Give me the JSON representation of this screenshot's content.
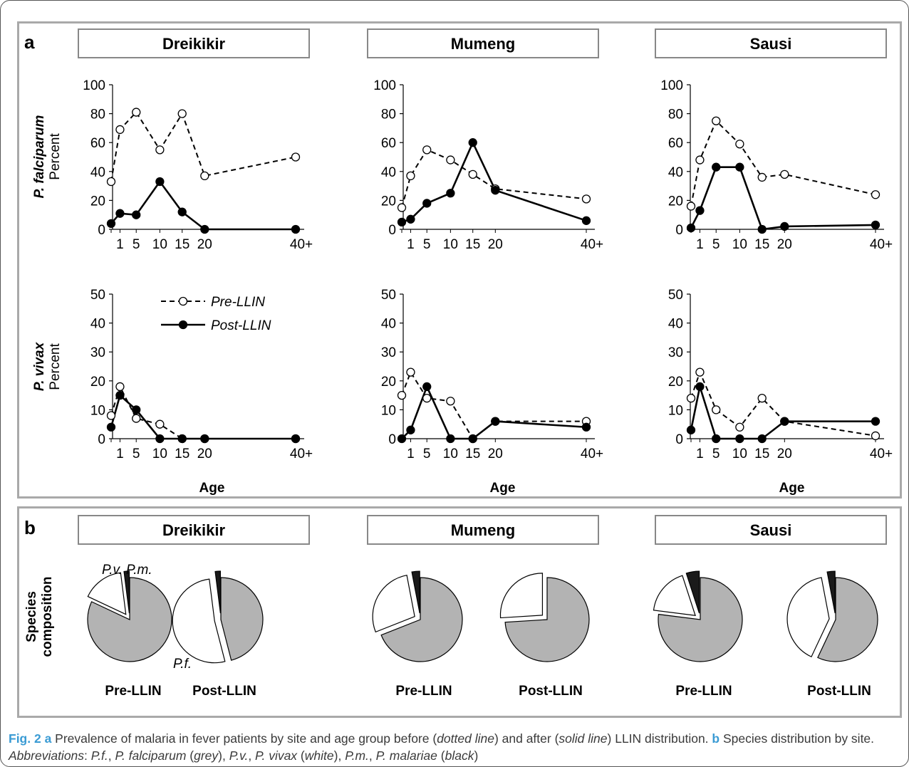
{
  "panel_a_label": "a",
  "panel_b_label": "b",
  "sites": [
    "Dreikikir",
    "Mumeng",
    "Sausi"
  ],
  "row_labels": {
    "pf_species": "P. falciparum",
    "pv_species": "P. vivax",
    "unit": "Percent"
  },
  "axis_xlabel": "Age",
  "legend": {
    "pre": "Pre-LLIN",
    "post": "Post-LLIN"
  },
  "pie_row_label": [
    "Species",
    "composition"
  ],
  "pie_labels": {
    "pv": "P.v.",
    "pm": "P.m.",
    "pf": "P.f."
  },
  "pie_period_labels": [
    "Pre-LLIN",
    "Post-LLIN"
  ],
  "caption": {
    "fig": "Fig. 2",
    "a": "a",
    "text1": " Prevalence of malaria in fever patients by site and age group before (",
    "dotted": "dotted line",
    "text2": ") and after (",
    "solid": "solid line",
    "text3": ") LLIN distribution. ",
    "b": "b",
    "text4": " Species distribution by site. ",
    "abbrev": "Abbreviations",
    "text5": ": ",
    "pf": "P.f.",
    "c1": ", ",
    "pf_full": "P. falciparum",
    "c2": " (",
    "grey": "grey",
    "c3": "), ",
    "pv": "P.v.",
    "c4": ", ",
    "pv_full": "P. vivax",
    "c5": " (",
    "white": "white",
    "c6": "), ",
    "pm": "P.m.",
    "c7": ", ",
    "pm_full": "P. malariae",
    "c8": " (",
    "black": "black",
    "c9": ")"
  },
  "chart_data": [
    {
      "type": "line",
      "site": "Dreikikir",
      "row": "P. falciparum",
      "x_ticks": [
        "1",
        "5",
        "10",
        "15",
        "20",
        "40+"
      ],
      "ylim": [
        0,
        100
      ],
      "y_ticks": [
        0,
        20,
        40,
        60,
        80,
        100
      ],
      "x": [
        0,
        1,
        5,
        10,
        15,
        20,
        40
      ],
      "series": [
        {
          "name": "Pre-LLIN",
          "values": [
            33,
            69,
            81,
            55,
            80,
            37,
            50
          ]
        },
        {
          "name": "Post-LLIN",
          "values": [
            4,
            11,
            10,
            33,
            12,
            0,
            0
          ]
        }
      ]
    },
    {
      "type": "line",
      "site": "Mumeng",
      "row": "P. falciparum",
      "x_ticks": [
        "1",
        "5",
        "10",
        "15",
        "20",
        "40+"
      ],
      "ylim": [
        0,
        100
      ],
      "y_ticks": [
        0,
        20,
        40,
        60,
        80,
        100
      ],
      "x": [
        0,
        1,
        5,
        10,
        15,
        20,
        40
      ],
      "series": [
        {
          "name": "Pre-LLIN",
          "values": [
            15,
            37,
            55,
            48,
            38,
            28,
            21
          ]
        },
        {
          "name": "Post-LLIN",
          "values": [
            5,
            7,
            18,
            25,
            60,
            27,
            6
          ]
        }
      ]
    },
    {
      "type": "line",
      "site": "Sausi",
      "row": "P. falciparum",
      "x_ticks": [
        "1",
        "5",
        "10",
        "15",
        "20",
        "40+"
      ],
      "ylim": [
        0,
        100
      ],
      "y_ticks": [
        0,
        20,
        40,
        60,
        80,
        100
      ],
      "x": [
        0,
        1,
        5,
        10,
        15,
        20,
        40
      ],
      "series": [
        {
          "name": "Pre-LLIN",
          "values": [
            16,
            48,
            75,
            59,
            36,
            38,
            24
          ]
        },
        {
          "name": "Post-LLIN",
          "values": [
            1,
            13,
            43,
            43,
            0,
            2,
            3
          ]
        }
      ]
    },
    {
      "type": "line",
      "site": "Dreikikir",
      "row": "P. vivax",
      "x_ticks": [
        "1",
        "5",
        "10",
        "15",
        "20",
        "40+"
      ],
      "ylim": [
        0,
        50
      ],
      "y_ticks": [
        0,
        10,
        20,
        30,
        40,
        50
      ],
      "x": [
        0,
        1,
        5,
        10,
        15,
        20,
        40
      ],
      "series": [
        {
          "name": "Pre-LLIN",
          "values": [
            8,
            18,
            7,
            5,
            0,
            0,
            0
          ]
        },
        {
          "name": "Post-LLIN",
          "values": [
            4,
            15,
            10,
            0,
            0,
            0,
            0
          ]
        }
      ]
    },
    {
      "type": "line",
      "site": "Mumeng",
      "row": "P. vivax",
      "x_ticks": [
        "1",
        "5",
        "10",
        "15",
        "20",
        "40+"
      ],
      "ylim": [
        0,
        50
      ],
      "y_ticks": [
        0,
        10,
        20,
        30,
        40,
        50
      ],
      "x": [
        0,
        1,
        5,
        10,
        15,
        20,
        40
      ],
      "series": [
        {
          "name": "Pre-LLIN",
          "values": [
            15,
            23,
            14,
            13,
            0,
            6,
            6
          ]
        },
        {
          "name": "Post-LLIN",
          "values": [
            0,
            3,
            18,
            0,
            0,
            6,
            4
          ]
        }
      ]
    },
    {
      "type": "line",
      "site": "Sausi",
      "row": "P. vivax",
      "x_ticks": [
        "1",
        "5",
        "10",
        "15",
        "20",
        "40+"
      ],
      "ylim": [
        0,
        50
      ],
      "y_ticks": [
        0,
        10,
        20,
        30,
        40,
        50
      ],
      "x": [
        0,
        1,
        5,
        10,
        15,
        20,
        40
      ],
      "series": [
        {
          "name": "Pre-LLIN",
          "values": [
            14,
            23,
            10,
            4,
            14,
            6,
            1
          ]
        },
        {
          "name": "Post-LLIN",
          "values": [
            3,
            18,
            0,
            0,
            0,
            6,
            6
          ]
        }
      ]
    },
    {
      "type": "pie",
      "site": "Dreikikir",
      "period": "Pre-LLIN",
      "categories": [
        "P.f.",
        "P.v.",
        "P.m."
      ],
      "values": [
        82,
        16,
        2
      ],
      "colors": [
        "#b3b3b3",
        "#ffffff",
        "#1a1a1a"
      ]
    },
    {
      "type": "pie",
      "site": "Dreikikir",
      "period": "Post-LLIN",
      "categories": [
        "P.f.",
        "P.v.",
        "P.m."
      ],
      "values": [
        46,
        52,
        2
      ],
      "colors": [
        "#b3b3b3",
        "#ffffff",
        "#1a1a1a"
      ]
    },
    {
      "type": "pie",
      "site": "Mumeng",
      "period": "Pre-LLIN",
      "categories": [
        "P.f.",
        "P.v.",
        "P.m."
      ],
      "values": [
        69,
        28,
        3
      ],
      "colors": [
        "#b3b3b3",
        "#ffffff",
        "#1a1a1a"
      ]
    },
    {
      "type": "pie",
      "site": "Mumeng",
      "period": "Post-LLIN",
      "categories": [
        "P.f.",
        "P.v.",
        "P.m."
      ],
      "values": [
        74,
        26,
        0
      ],
      "colors": [
        "#b3b3b3",
        "#ffffff",
        "#1a1a1a"
      ]
    },
    {
      "type": "pie",
      "site": "Sausi",
      "period": "Pre-LLIN",
      "categories": [
        "P.f.",
        "P.v.",
        "P.m."
      ],
      "values": [
        77,
        18,
        5
      ],
      "colors": [
        "#b3b3b3",
        "#ffffff",
        "#1a1a1a"
      ]
    },
    {
      "type": "pie",
      "site": "Sausi",
      "period": "Post-LLIN",
      "categories": [
        "P.f.",
        "P.v.",
        "P.m."
      ],
      "values": [
        57,
        40,
        3
      ],
      "colors": [
        "#b3b3b3",
        "#ffffff",
        "#1a1a1a"
      ]
    }
  ]
}
